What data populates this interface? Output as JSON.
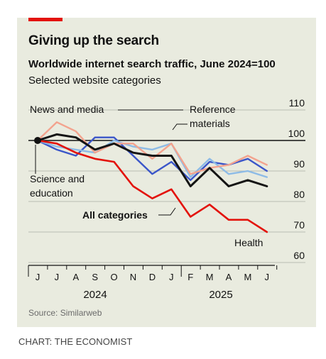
{
  "credit": "CHART: THE ECONOMIST",
  "chart_data": {
    "type": "line",
    "title": "Giving up the search",
    "subtitle": "Worldwide internet search traffic, June 2024=100",
    "subtitle2": "Selected website categories",
    "source": "Source: Similarweb",
    "ylim": [
      60,
      110
    ],
    "yticks": [
      60,
      70,
      80,
      90,
      100,
      110
    ],
    "grid": true,
    "x_tick_labels": [
      "J",
      "J",
      "A",
      "S",
      "O",
      "N",
      "D",
      "J",
      "F",
      "M",
      "A",
      "M",
      "J"
    ],
    "x_year_labels": [
      "2024",
      "2025"
    ],
    "x": [
      "2024-06",
      "2024-07",
      "2024-08",
      "2024-09",
      "2024-10",
      "2024-11",
      "2024-12",
      "2025-01",
      "2025-02",
      "2025-03",
      "2025-04",
      "2025-05",
      "2025-06"
    ],
    "series": [
      {
        "name": "News and media",
        "color": "#3b56c9",
        "width": 2.4,
        "values": [
          100,
          97,
          95,
          101,
          101,
          95,
          89,
          93,
          87,
          93,
          92,
          94,
          90
        ]
      },
      {
        "name": "Science and education",
        "color": "#8dbbe6",
        "width": 2.4,
        "values": [
          100,
          98,
          97,
          96,
          100,
          98,
          97,
          99,
          88,
          94,
          89,
          90,
          88
        ]
      },
      {
        "name": "Reference materials",
        "color": "#f3a38e",
        "width": 2.4,
        "values": [
          100,
          106,
          103,
          96,
          99,
          99,
          94,
          99,
          89,
          91,
          92,
          95,
          92
        ]
      },
      {
        "name": "All categories",
        "color": "#141414",
        "width": 3,
        "values": [
          100,
          102,
          101,
          97,
          99,
          96,
          95,
          95,
          85,
          91,
          85,
          87,
          85
        ]
      },
      {
        "name": "Health",
        "color": "#e3120b",
        "width": 2.6,
        "values": [
          100,
          99,
          96,
          94,
          93,
          85,
          81,
          84,
          75,
          79,
          74,
          74,
          70
        ]
      }
    ],
    "annotations": {
      "news": "News and media",
      "reference_1": "Reference",
      "reference_2": "materials",
      "science_1": "Science and",
      "science_2": "education",
      "all": "All categories",
      "health": "Health"
    }
  }
}
